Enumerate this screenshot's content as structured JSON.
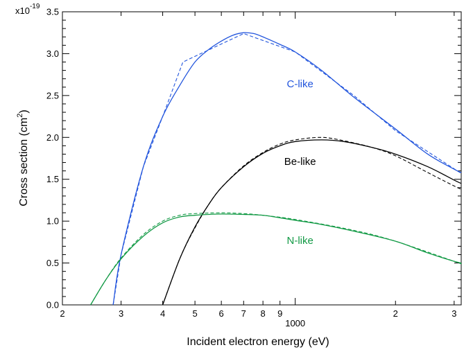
{
  "chart_data": {
    "type": "line",
    "title": "",
    "xlabel": "Incident electron energy (eV)",
    "ylabel_main": "Cross section (cm",
    "ylabel_exp": "2",
    "ylabel_close": ")",
    "x_scale": "log",
    "xlim": [
      200,
      3150
    ],
    "ylim": [
      0.0,
      3.5
    ],
    "y_multiplier_text": "x10",
    "y_multiplier_exp": "-19",
    "y_ticks": [
      {
        "value": 0.0,
        "label": "0.0"
      },
      {
        "value": 0.5,
        "label": "0.5"
      },
      {
        "value": 1.0,
        "label": "1.0"
      },
      {
        "value": 1.5,
        "label": "1.5"
      },
      {
        "value": 2.0,
        "label": "2.0"
      },
      {
        "value": 2.5,
        "label": "2.5"
      },
      {
        "value": 3.0,
        "label": "3.0"
      },
      {
        "value": 3.5,
        "label": "3.5"
      }
    ],
    "x_ticks": [
      {
        "value": 200,
        "label": "2"
      },
      {
        "value": 300,
        "label": "3"
      },
      {
        "value": 400,
        "label": "4"
      },
      {
        "value": 500,
        "label": "5"
      },
      {
        "value": 600,
        "label": "6"
      },
      {
        "value": 700,
        "label": "7"
      },
      {
        "value": 800,
        "label": "8"
      },
      {
        "value": 900,
        "label": "9"
      },
      {
        "value": 2000,
        "label": "2"
      },
      {
        "value": 3000,
        "label": "3"
      }
    ],
    "x_major_label": {
      "value": 1000,
      "label": "1000"
    },
    "series": [
      {
        "label": "C-like",
        "color": "#2255dd",
        "solid": [
          [
            284,
            0.0
          ],
          [
            300,
            0.6
          ],
          [
            350,
            1.65
          ],
          [
            400,
            2.25
          ],
          [
            450,
            2.62
          ],
          [
            500,
            2.9
          ],
          [
            550,
            3.05
          ],
          [
            600,
            3.15
          ],
          [
            650,
            3.22
          ],
          [
            700,
            3.25
          ],
          [
            750,
            3.24
          ],
          [
            800,
            3.2
          ],
          [
            900,
            3.11
          ],
          [
            1000,
            3.02
          ],
          [
            1200,
            2.8
          ],
          [
            1500,
            2.48
          ],
          [
            2000,
            2.1
          ],
          [
            2500,
            1.8
          ],
          [
            3000,
            1.62
          ],
          [
            3150,
            1.58
          ]
        ],
        "dashed": [
          [
            284,
            0.0
          ],
          [
            300,
            0.6
          ],
          [
            350,
            1.65
          ],
          [
            400,
            2.25
          ],
          [
            460,
            2.9
          ],
          [
            700,
            3.24
          ],
          [
            1000,
            3.02
          ],
          [
            1500,
            2.5
          ],
          [
            2000,
            2.08
          ],
          [
            3150,
            1.57
          ]
        ]
      },
      {
        "label": "Be-like",
        "color": "#000000",
        "solid": [
          [
            400,
            0.0
          ],
          [
            450,
            0.55
          ],
          [
            500,
            0.93
          ],
          [
            550,
            1.2
          ],
          [
            600,
            1.4
          ],
          [
            700,
            1.65
          ],
          [
            800,
            1.81
          ],
          [
            900,
            1.9
          ],
          [
            1000,
            1.95
          ],
          [
            1200,
            1.97
          ],
          [
            1400,
            1.95
          ],
          [
            1700,
            1.88
          ],
          [
            2000,
            1.8
          ],
          [
            2500,
            1.65
          ],
          [
            3000,
            1.49
          ],
          [
            3150,
            1.45
          ]
        ],
        "dashed": [
          [
            400,
            0.0
          ],
          [
            450,
            0.55
          ],
          [
            500,
            0.92
          ],
          [
            550,
            1.2
          ],
          [
            600,
            1.4
          ],
          [
            700,
            1.66
          ],
          [
            800,
            1.82
          ],
          [
            900,
            1.92
          ],
          [
            1000,
            1.97
          ],
          [
            1200,
            2.0
          ],
          [
            1400,
            1.96
          ],
          [
            1700,
            1.88
          ],
          [
            2000,
            1.78
          ],
          [
            2500,
            1.58
          ],
          [
            3000,
            1.42
          ],
          [
            3150,
            1.38
          ]
        ]
      },
      {
        "label": "N-like",
        "color": "#119944",
        "solid": [
          [
            243,
            0.0
          ],
          [
            270,
            0.3
          ],
          [
            300,
            0.55
          ],
          [
            350,
            0.82
          ],
          [
            400,
            0.98
          ],
          [
            450,
            1.05
          ],
          [
            500,
            1.07
          ],
          [
            550,
            1.08
          ],
          [
            600,
            1.085
          ],
          [
            700,
            1.08
          ],
          [
            800,
            1.07
          ],
          [
            900,
            1.04
          ],
          [
            1000,
            1.01
          ],
          [
            1200,
            0.96
          ],
          [
            1500,
            0.88
          ],
          [
            2000,
            0.76
          ],
          [
            2500,
            0.62
          ],
          [
            3000,
            0.52
          ],
          [
            3150,
            0.5
          ]
        ],
        "dashed": [
          [
            243,
            0.0
          ],
          [
            270,
            0.3
          ],
          [
            300,
            0.56
          ],
          [
            350,
            0.84
          ],
          [
            400,
            1.0
          ],
          [
            450,
            1.07
          ],
          [
            500,
            1.09
          ],
          [
            600,
            1.1
          ],
          [
            700,
            1.09
          ],
          [
            800,
            1.07
          ],
          [
            1000,
            1.02
          ],
          [
            1500,
            0.89
          ],
          [
            2000,
            0.76
          ],
          [
            3000,
            0.52
          ],
          [
            3150,
            0.49
          ]
        ]
      }
    ]
  }
}
